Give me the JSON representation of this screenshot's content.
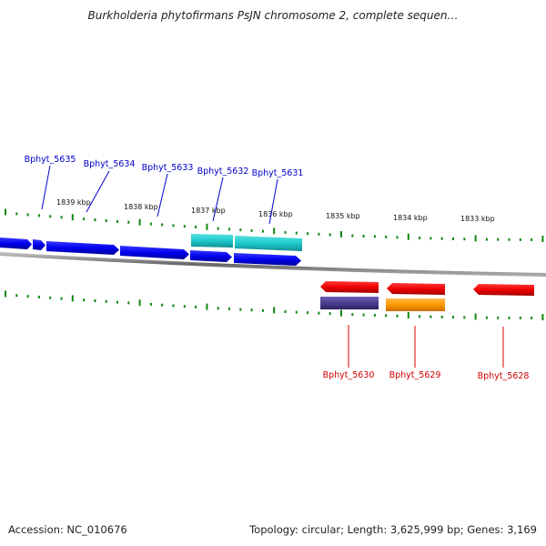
{
  "title": "Burkholderia phytofirmans PsJN chromosome 2, complete sequen…",
  "footer": {
    "accession": "Accession: NC_010676",
    "topology": "Topology: circular; Length: 3,625,999 bp; Genes: 3,169"
  },
  "scale_labels": [
    "1839 kbp",
    "1838 kbp",
    "1837 kbp",
    "1836 kbp",
    "1835 kbp",
    "1834 kbp",
    "1833 kbp"
  ],
  "genes_forward": [
    {
      "label": "Bphyt_5635",
      "color": "#0000ff"
    },
    {
      "label": "Bphyt_5634",
      "color": "#0000ff"
    },
    {
      "label": "Bphyt_5633",
      "color": "#0000ff"
    },
    {
      "label": "Bphyt_5632",
      "color": "#0000ff"
    },
    {
      "label": "Bphyt_5631",
      "color": "#0000ff"
    }
  ],
  "genes_reverse": [
    {
      "label": "Bphyt_5630",
      "color": "#dd0000"
    },
    {
      "label": "Bphyt_5629",
      "color": "#dd0000"
    },
    {
      "label": "Bphyt_5628",
      "color": "#dd0000"
    }
  ],
  "colors": {
    "forward_gene": "#0000ee",
    "reverse_gene": "#ee0000",
    "feature_cyan": "#1fc9cc",
    "feature_purple": "#4b3f8f",
    "feature_orange": "#ff9900",
    "tick_green": "#118811",
    "backbone": "#777777"
  }
}
